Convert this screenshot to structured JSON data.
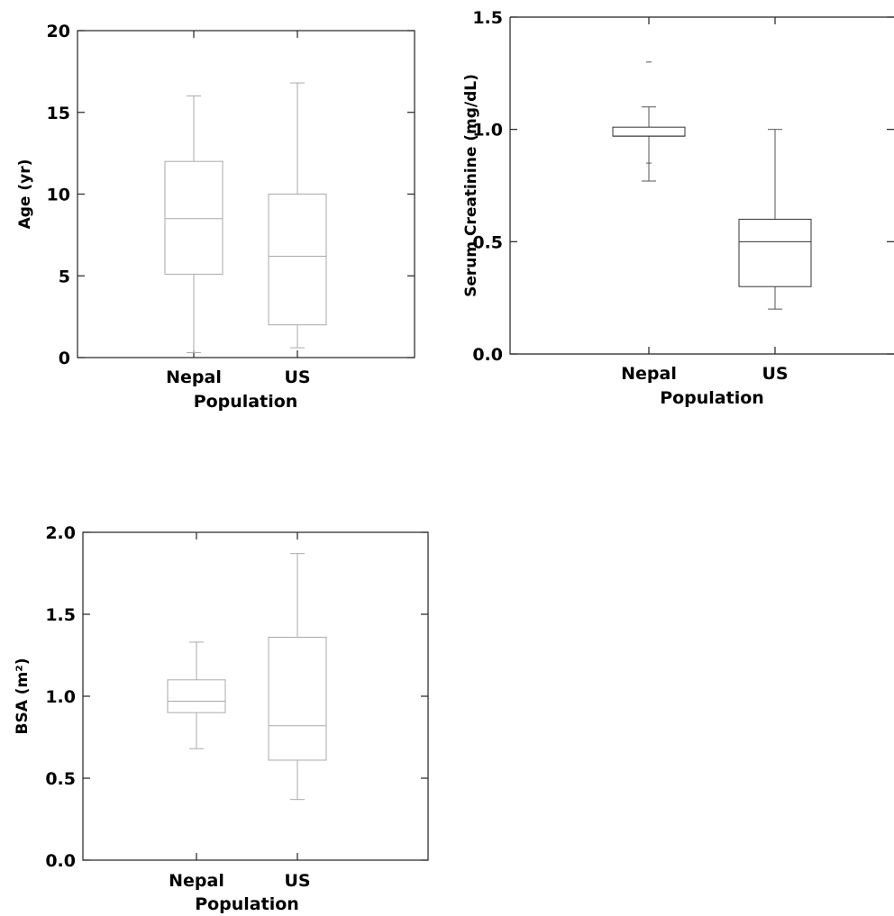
{
  "chart_data": [
    {
      "type": "box",
      "title": "",
      "xlabel": "Population",
      "ylabel": "Age (yr)",
      "categories": [
        "Nepal",
        "US"
      ],
      "ylim": [
        0,
        20
      ],
      "yticks": [
        "0",
        "5",
        "10",
        "15",
        "20"
      ],
      "boxes": [
        {
          "category": "Nepal",
          "min": 0.3,
          "q1": 5.1,
          "median": 8.5,
          "q3": 12.0,
          "max": 16.0
        },
        {
          "category": "US",
          "min": 0.6,
          "q1": 2.0,
          "median": 6.2,
          "q3": 10.0,
          "max": 16.8
        }
      ]
    },
    {
      "type": "box",
      "title": "",
      "xlabel": "Population",
      "ylabel": "Serum Creatinine (mg/dL)",
      "categories": [
        "Nepal",
        "US"
      ],
      "ylim": [
        0,
        1.5
      ],
      "yticks": [
        "0.0",
        "0.5",
        "1.0",
        "1.5"
      ],
      "boxes": [
        {
          "category": "Nepal",
          "min": 0.77,
          "q1": 0.97,
          "median": 0.97,
          "q3": 1.01,
          "max": 1.1,
          "outliers": [
            0.85,
            1.3
          ]
        },
        {
          "category": "US",
          "min": 0.2,
          "q1": 0.3,
          "median": 0.5,
          "q3": 0.6,
          "max": 1.0
        }
      ]
    },
    {
      "type": "box",
      "title": "",
      "xlabel": "Population",
      "ylabel": "BSA (m²)",
      "categories": [
        "Nepal",
        "US"
      ],
      "ylim": [
        0,
        2.0
      ],
      "yticks": [
        "0.0",
        "0.5",
        "1.0",
        "1.5",
        "2.0"
      ],
      "boxes": [
        {
          "category": "Nepal",
          "min": 0.68,
          "q1": 0.9,
          "median": 0.97,
          "q3": 1.1,
          "max": 1.33
        },
        {
          "category": "US",
          "min": 0.37,
          "q1": 0.61,
          "median": 0.82,
          "q3": 1.36,
          "max": 1.87
        }
      ]
    }
  ]
}
